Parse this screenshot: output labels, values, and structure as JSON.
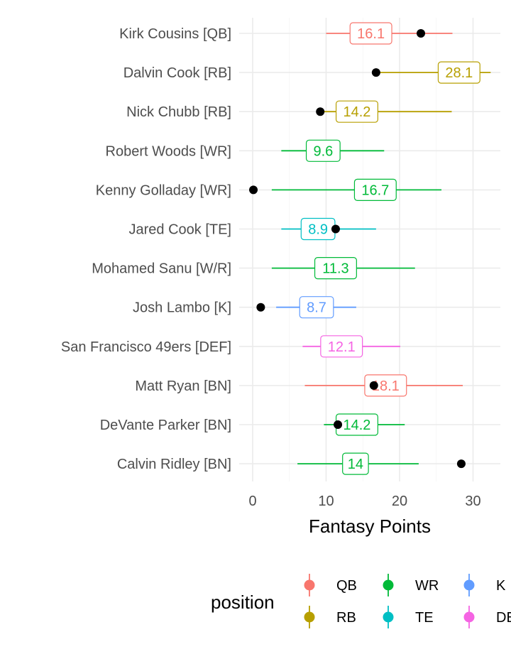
{
  "chart_data": {
    "type": "point-range",
    "xlabel": "Fantasy Points",
    "xlim": [
      -2.5,
      34.5
    ],
    "xticks": [
      0,
      10,
      20,
      30
    ],
    "grid": true,
    "legend": {
      "title": "position",
      "placement": "bottom",
      "entries": [
        {
          "name": "QB",
          "color": "#F8766D"
        },
        {
          "name": "RB",
          "color": "#B79F00"
        },
        {
          "name": "WR",
          "color": "#00BA38"
        },
        {
          "name": "TE",
          "color": "#00BFC4"
        },
        {
          "name": "K",
          "color": "#619CFF"
        },
        {
          "name": "DEF",
          "color": "#F564E3"
        }
      ]
    },
    "players": [
      {
        "name": "Kirk Cousins [QB]",
        "position": "QB",
        "projection": 16.1,
        "low": 10.0,
        "high": 27.2,
        "actual": 22.9
      },
      {
        "name": "Dalvin Cook [RB]",
        "position": "RB",
        "projection": 28.1,
        "low": 16.8,
        "high": 32.4,
        "actual": 16.8
      },
      {
        "name": "Nick Chubb [RB]",
        "position": "RB",
        "projection": 14.2,
        "low": 9.2,
        "high": 27.1,
        "actual": 9.2
      },
      {
        "name": "Robert Woods [WR]",
        "position": "WR",
        "projection": 9.6,
        "low": 3.9,
        "high": 17.9,
        "actual": null
      },
      {
        "name": "Kenny Golladay [WR]",
        "position": "WR",
        "projection": 16.7,
        "low": 2.6,
        "high": 25.7,
        "actual": 0.1
      },
      {
        "name": "Jared Cook [TE]",
        "position": "TE",
        "projection": 8.9,
        "low": 3.9,
        "high": 16.8,
        "actual": 11.3
      },
      {
        "name": "Mohamed Sanu [W/R]",
        "position": "WR",
        "projection": 11.3,
        "low": 2.6,
        "high": 22.1,
        "actual": null
      },
      {
        "name": "Josh Lambo [K]",
        "position": "K",
        "projection": 8.7,
        "low": 3.2,
        "high": 14.1,
        "actual": 1.1
      },
      {
        "name": "San Francisco 49ers [DEF]",
        "position": "DEF",
        "projection": 12.1,
        "low": 6.8,
        "high": 20.1,
        "actual": null
      },
      {
        "name": "Matt Ryan [BN]",
        "position": "QB",
        "projection": 18.1,
        "low": 7.1,
        "high": 28.6,
        "actual": 16.5
      },
      {
        "name": "DeVante Parker [BN]",
        "position": "WR",
        "projection": 14.2,
        "low": 9.7,
        "high": 20.7,
        "actual": 11.6
      },
      {
        "name": "Calvin Ridley [BN]",
        "position": "WR",
        "projection": 14.0,
        "low": 6.1,
        "high": 22.6,
        "actual": 28.4
      }
    ]
  }
}
